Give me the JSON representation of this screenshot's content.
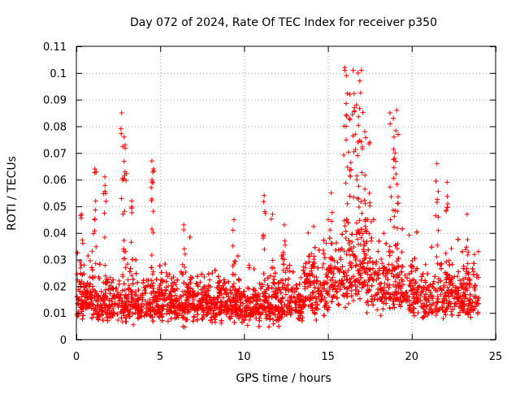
{
  "chart_data": {
    "type": "scatter",
    "title": "Day 072 of 2024, Rate Of TEC Index for receiver p350",
    "xlabel": "GPS time / hours",
    "ylabel": "ROTI / TECUs",
    "xlim": [
      0,
      25
    ],
    "ylim": [
      0,
      0.11
    ],
    "xticks": [
      0,
      5,
      10,
      15,
      20,
      25
    ],
    "xtick_labels": [
      "0",
      "5",
      "10",
      "15",
      "20",
      "25"
    ],
    "yticks": [
      0,
      0.01,
      0.02,
      0.03,
      0.04,
      0.05,
      0.06,
      0.07,
      0.08,
      0.09,
      0.1,
      0.11
    ],
    "ytick_labels": [
      "0",
      "0.01",
      "0.02",
      "0.03",
      "0.04",
      "0.05",
      "0.06",
      "0.07",
      "0.08",
      "0.09",
      "0.1",
      "0.11"
    ],
    "grid": true,
    "marker": "plus",
    "color": "#ff0000",
    "series": [
      {
        "name": "ROTI",
        "x_range": [
          0,
          24
        ],
        "baseline_median": 0.013,
        "notable_peaks": [
          {
            "x": 0.3,
            "y": 0.047
          },
          {
            "x": 1.1,
            "y": 0.064
          },
          {
            "x": 1.7,
            "y": 0.061
          },
          {
            "x": 2.7,
            "y": 0.085
          },
          {
            "x": 2.85,
            "y": 0.076
          },
          {
            "x": 2.9,
            "y": 0.073
          },
          {
            "x": 3.3,
            "y": 0.052
          },
          {
            "x": 4.5,
            "y": 0.067
          },
          {
            "x": 4.6,
            "y": 0.064
          },
          {
            "x": 6.4,
            "y": 0.043
          },
          {
            "x": 9.4,
            "y": 0.045
          },
          {
            "x": 11.2,
            "y": 0.054
          },
          {
            "x": 11.7,
            "y": 0.047
          },
          {
            "x": 12.4,
            "y": 0.043
          },
          {
            "x": 15.2,
            "y": 0.055
          },
          {
            "x": 16.0,
            "y": 0.102
          },
          {
            "x": 16.1,
            "y": 0.099
          },
          {
            "x": 16.5,
            "y": 0.101
          },
          {
            "x": 16.8,
            "y": 0.1
          },
          {
            "x": 16.9,
            "y": 0.097
          },
          {
            "x": 17.0,
            "y": 0.101
          },
          {
            "x": 16.3,
            "y": 0.092
          },
          {
            "x": 16.7,
            "y": 0.088
          },
          {
            "x": 17.2,
            "y": 0.078
          },
          {
            "x": 17.5,
            "y": 0.074
          },
          {
            "x": 18.7,
            "y": 0.085
          },
          {
            "x": 18.9,
            "y": 0.083
          },
          {
            "x": 19.1,
            "y": 0.086
          },
          {
            "x": 19.0,
            "y": 0.07
          },
          {
            "x": 21.5,
            "y": 0.066
          },
          {
            "x": 22.1,
            "y": 0.059
          },
          {
            "x": 23.3,
            "y": 0.047
          }
        ]
      }
    ]
  }
}
